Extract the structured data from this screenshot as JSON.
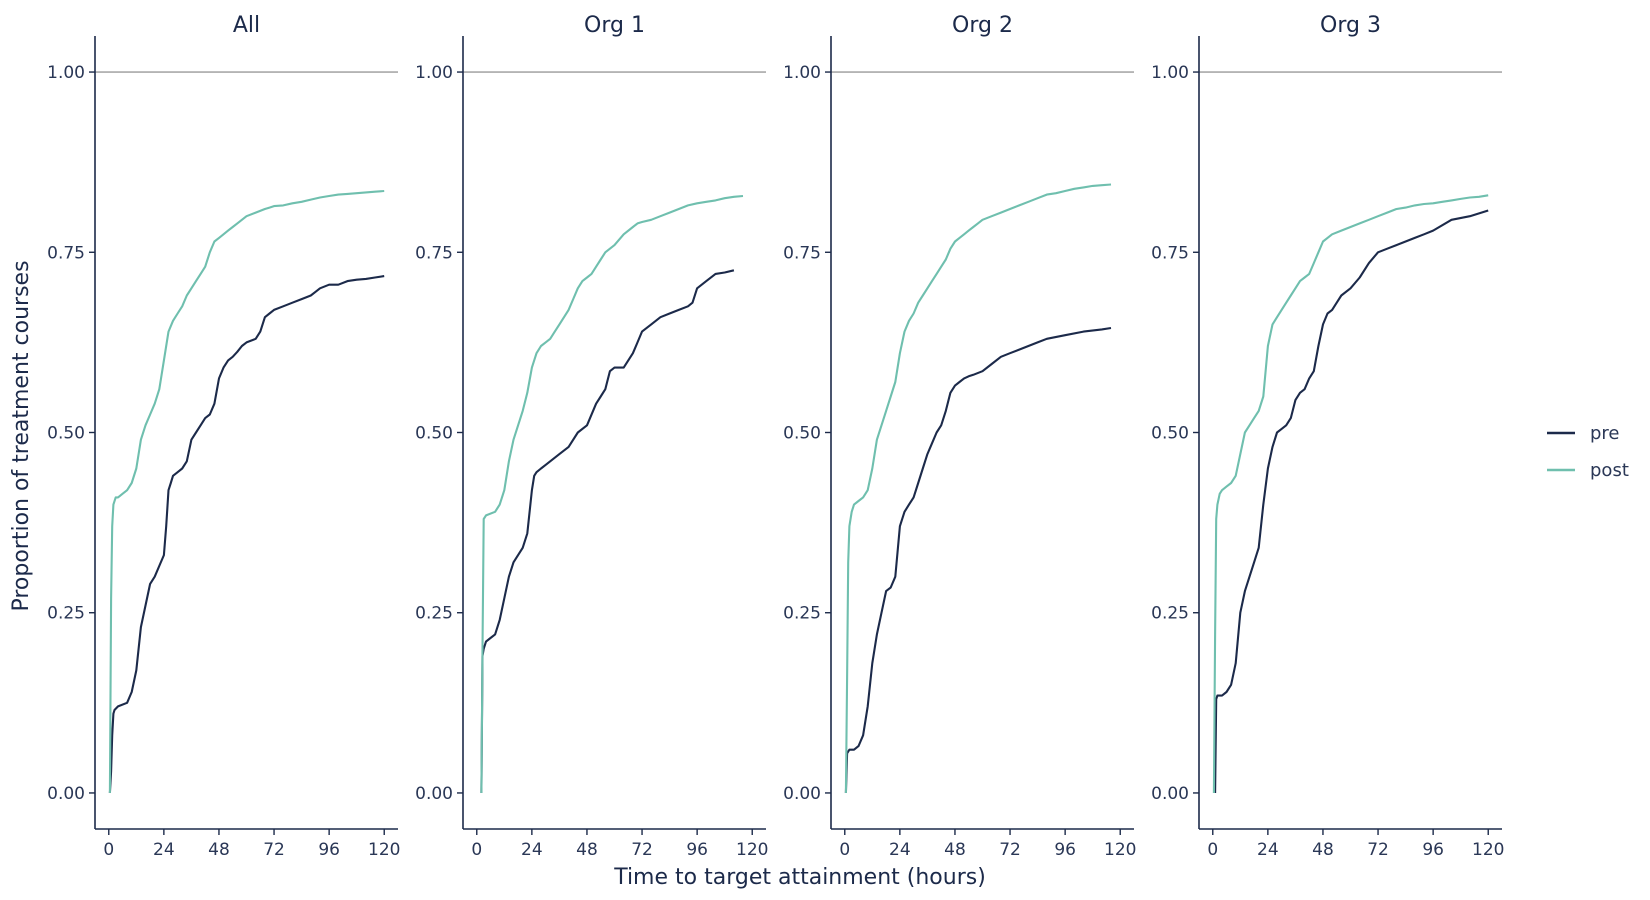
{
  "chart_data": {
    "type": "line",
    "xlabel": "Time to target attainment (hours)",
    "ylabel": "Proportion of treatment courses",
    "xlim": [
      -6,
      126
    ],
    "ylim": [
      -0.05,
      1.05
    ],
    "xticks": [
      0,
      24,
      48,
      72,
      96,
      120
    ],
    "xtick_labels": [
      "0",
      "24",
      "48",
      "72",
      "96",
      "120"
    ],
    "yticks": [
      0,
      0.25,
      0.5,
      0.75,
      1.0
    ],
    "ytick_labels": [
      "0.00",
      "0.25",
      "0.50",
      "0.75",
      "1.00"
    ],
    "reference_line_y": 1.0,
    "grid": false,
    "legend": {
      "placement": "right",
      "entries": [
        {
          "name": "pre",
          "color": "#1c2a4a"
        },
        {
          "name": "post",
          "color": "#6fbfae"
        }
      ]
    },
    "panels": [
      {
        "title": "All",
        "series": [
          {
            "name": "pre",
            "color": "#1c2a4a",
            "x": [
              0.5,
              1,
              1.5,
              2,
              2.5,
              4,
              8,
              10,
              12,
              14,
              16,
              18,
              20,
              22,
              24,
              25,
              26,
              27,
              28,
              30,
              32,
              34,
              36,
              38,
              40,
              42,
              44,
              46,
              48,
              50,
              52,
              54,
              56,
              58,
              60,
              64,
              66,
              68,
              70,
              72,
              76,
              80,
              84,
              88,
              90,
              92,
              96,
              100,
              104,
              108,
              112,
              116,
              120
            ],
            "y": [
              0,
              0.03,
              0.08,
              0.11,
              0.115,
              0.12,
              0.125,
              0.14,
              0.17,
              0.23,
              0.26,
              0.29,
              0.3,
              0.315,
              0.33,
              0.37,
              0.42,
              0.43,
              0.44,
              0.445,
              0.45,
              0.46,
              0.49,
              0.5,
              0.51,
              0.52,
              0.525,
              0.54,
              0.575,
              0.59,
              0.6,
              0.605,
              0.612,
              0.62,
              0.625,
              0.63,
              0.64,
              0.66,
              0.665,
              0.67,
              0.675,
              0.68,
              0.685,
              0.69,
              0.695,
              0.7,
              0.705,
              0.705,
              0.71,
              0.712,
              0.713,
              0.715,
              0.717
            ]
          },
          {
            "name": "post",
            "color": "#6fbfae",
            "x": [
              0.5,
              1,
              1.5,
              2,
              3,
              4,
              6,
              8,
              10,
              12,
              14,
              16,
              18,
              20,
              22,
              24,
              26,
              28,
              30,
              32,
              34,
              36,
              38,
              40,
              42,
              44,
              46,
              48,
              50,
              52,
              54,
              56,
              58,
              60,
              64,
              68,
              70,
              72,
              76,
              80,
              84,
              88,
              92,
              96,
              100,
              104,
              108,
              112,
              116,
              120
            ],
            "y": [
              0,
              0.27,
              0.37,
              0.4,
              0.41,
              0.41,
              0.415,
              0.42,
              0.43,
              0.45,
              0.49,
              0.51,
              0.525,
              0.54,
              0.56,
              0.6,
              0.64,
              0.655,
              0.665,
              0.675,
              0.69,
              0.7,
              0.71,
              0.72,
              0.73,
              0.75,
              0.765,
              0.77,
              0.775,
              0.78,
              0.785,
              0.79,
              0.795,
              0.8,
              0.805,
              0.81,
              0.812,
              0.814,
              0.815,
              0.818,
              0.82,
              0.823,
              0.826,
              0.828,
              0.83,
              0.831,
              0.832,
              0.833,
              0.834,
              0.835
            ]
          }
        ]
      },
      {
        "title": "Org 1",
        "series": [
          {
            "name": "pre",
            "color": "#1c2a4a",
            "x": [
              2,
              2.5,
              3,
              4,
              6,
              8,
              10,
              12,
              14,
              16,
              18,
              20,
              22,
              24,
              25,
              26,
              28,
              30,
              32,
              36,
              40,
              44,
              48,
              52,
              54,
              56,
              58,
              60,
              64,
              68,
              70,
              72,
              76,
              80,
              84,
              88,
              92,
              94,
              96,
              100,
              104,
              108,
              112
            ],
            "y": [
              0,
              0.19,
              0.2,
              0.21,
              0.215,
              0.22,
              0.24,
              0.27,
              0.3,
              0.32,
              0.33,
              0.34,
              0.36,
              0.42,
              0.44,
              0.445,
              0.45,
              0.455,
              0.46,
              0.47,
              0.48,
              0.5,
              0.51,
              0.54,
              0.55,
              0.56,
              0.585,
              0.59,
              0.59,
              0.61,
              0.625,
              0.64,
              0.65,
              0.66,
              0.665,
              0.67,
              0.675,
              0.68,
              0.7,
              0.71,
              0.72,
              0.722,
              0.725
            ]
          },
          {
            "name": "post",
            "color": "#6fbfae",
            "x": [
              2,
              2.5,
              3,
              4,
              8,
              10,
              12,
              14,
              16,
              18,
              20,
              22,
              24,
              26,
              28,
              30,
              32,
              34,
              36,
              38,
              40,
              42,
              44,
              46,
              48,
              50,
              52,
              54,
              56,
              60,
              64,
              68,
              70,
              72,
              76,
              80,
              84,
              88,
              92,
              96,
              100,
              104,
              108,
              112,
              116
            ],
            "y": [
              0,
              0.2,
              0.38,
              0.385,
              0.39,
              0.4,
              0.42,
              0.46,
              0.49,
              0.51,
              0.53,
              0.555,
              0.59,
              0.61,
              0.62,
              0.625,
              0.63,
              0.64,
              0.65,
              0.66,
              0.67,
              0.685,
              0.7,
              0.71,
              0.715,
              0.72,
              0.73,
              0.74,
              0.75,
              0.76,
              0.775,
              0.785,
              0.79,
              0.792,
              0.795,
              0.8,
              0.805,
              0.81,
              0.815,
              0.818,
              0.82,
              0.822,
              0.825,
              0.827,
              0.828
            ]
          }
        ]
      },
      {
        "title": "Org 2",
        "series": [
          {
            "name": "pre",
            "color": "#1c2a4a",
            "x": [
              0.5,
              1,
              2,
              4,
              6,
              8,
              10,
              12,
              14,
              16,
              18,
              20,
              22,
              24,
              26,
              28,
              30,
              32,
              34,
              36,
              38,
              40,
              42,
              44,
              46,
              48,
              50,
              52,
              54,
              56,
              60,
              64,
              68,
              72,
              76,
              80,
              84,
              88,
              96,
              104,
              112,
              116
            ],
            "y": [
              0,
              0.055,
              0.06,
              0.06,
              0.065,
              0.08,
              0.12,
              0.18,
              0.22,
              0.25,
              0.28,
              0.285,
              0.3,
              0.37,
              0.39,
              0.4,
              0.41,
              0.43,
              0.45,
              0.47,
              0.485,
              0.5,
              0.51,
              0.53,
              0.555,
              0.565,
              0.57,
              0.575,
              0.578,
              0.58,
              0.585,
              0.595,
              0.605,
              0.61,
              0.615,
              0.62,
              0.625,
              0.63,
              0.635,
              0.64,
              0.643,
              0.645
            ]
          },
          {
            "name": "post",
            "color": "#6fbfae",
            "x": [
              0.5,
              1,
              1.5,
              2,
              3,
              4,
              6,
              8,
              10,
              12,
              14,
              16,
              18,
              20,
              22,
              24,
              26,
              28,
              30,
              32,
              34,
              36,
              38,
              40,
              42,
              44,
              46,
              48,
              50,
              52,
              54,
              56,
              58,
              60,
              64,
              68,
              72,
              76,
              80,
              84,
              88,
              92,
              96,
              100,
              104,
              108,
              112,
              116
            ],
            "y": [
              0,
              0.16,
              0.32,
              0.37,
              0.39,
              0.4,
              0.405,
              0.41,
              0.42,
              0.45,
              0.49,
              0.51,
              0.53,
              0.55,
              0.57,
              0.61,
              0.64,
              0.655,
              0.665,
              0.68,
              0.69,
              0.7,
              0.71,
              0.72,
              0.73,
              0.74,
              0.755,
              0.765,
              0.77,
              0.775,
              0.78,
              0.785,
              0.79,
              0.795,
              0.8,
              0.805,
              0.81,
              0.815,
              0.82,
              0.825,
              0.83,
              0.832,
              0.835,
              0.838,
              0.84,
              0.842,
              0.843,
              0.844
            ]
          }
        ]
      },
      {
        "title": "Org 3",
        "series": [
          {
            "name": "pre",
            "color": "#1c2a4a",
            "x": [
              1,
              1.5,
              2,
              4,
              6,
              8,
              10,
              12,
              14,
              16,
              18,
              20,
              22,
              24,
              26,
              28,
              30,
              32,
              34,
              36,
              38,
              40,
              42,
              44,
              46,
              48,
              50,
              52,
              54,
              56,
              60,
              64,
              68,
              72,
              76,
              80,
              84,
              88,
              92,
              96,
              104,
              112,
              120
            ],
            "y": [
              0,
              0.13,
              0.135,
              0.135,
              0.14,
              0.15,
              0.18,
              0.25,
              0.28,
              0.3,
              0.32,
              0.34,
              0.4,
              0.45,
              0.48,
              0.5,
              0.505,
              0.51,
              0.52,
              0.545,
              0.555,
              0.56,
              0.575,
              0.585,
              0.62,
              0.65,
              0.665,
              0.67,
              0.68,
              0.69,
              0.7,
              0.715,
              0.735,
              0.75,
              0.755,
              0.76,
              0.765,
              0.77,
              0.775,
              0.78,
              0.795,
              0.8,
              0.808
            ]
          },
          {
            "name": "post",
            "color": "#6fbfae",
            "x": [
              0.5,
              1,
              1.5,
              2,
              3,
              4,
              6,
              8,
              10,
              12,
              14,
              16,
              18,
              20,
              22,
              24,
              26,
              28,
              30,
              32,
              34,
              36,
              38,
              40,
              42,
              44,
              46,
              48,
              50,
              52,
              56,
              60,
              64,
              68,
              72,
              76,
              80,
              84,
              88,
              92,
              96,
              100,
              104,
              108,
              112,
              116,
              120
            ],
            "y": [
              0,
              0.22,
              0.38,
              0.4,
              0.415,
              0.42,
              0.425,
              0.43,
              0.44,
              0.47,
              0.5,
              0.51,
              0.52,
              0.53,
              0.55,
              0.62,
              0.65,
              0.66,
              0.67,
              0.68,
              0.69,
              0.7,
              0.71,
              0.715,
              0.72,
              0.735,
              0.75,
              0.765,
              0.77,
              0.775,
              0.78,
              0.785,
              0.79,
              0.795,
              0.8,
              0.805,
              0.81,
              0.812,
              0.815,
              0.817,
              0.818,
              0.82,
              0.822,
              0.824,
              0.826,
              0.827,
              0.829
            ]
          }
        ]
      }
    ]
  }
}
